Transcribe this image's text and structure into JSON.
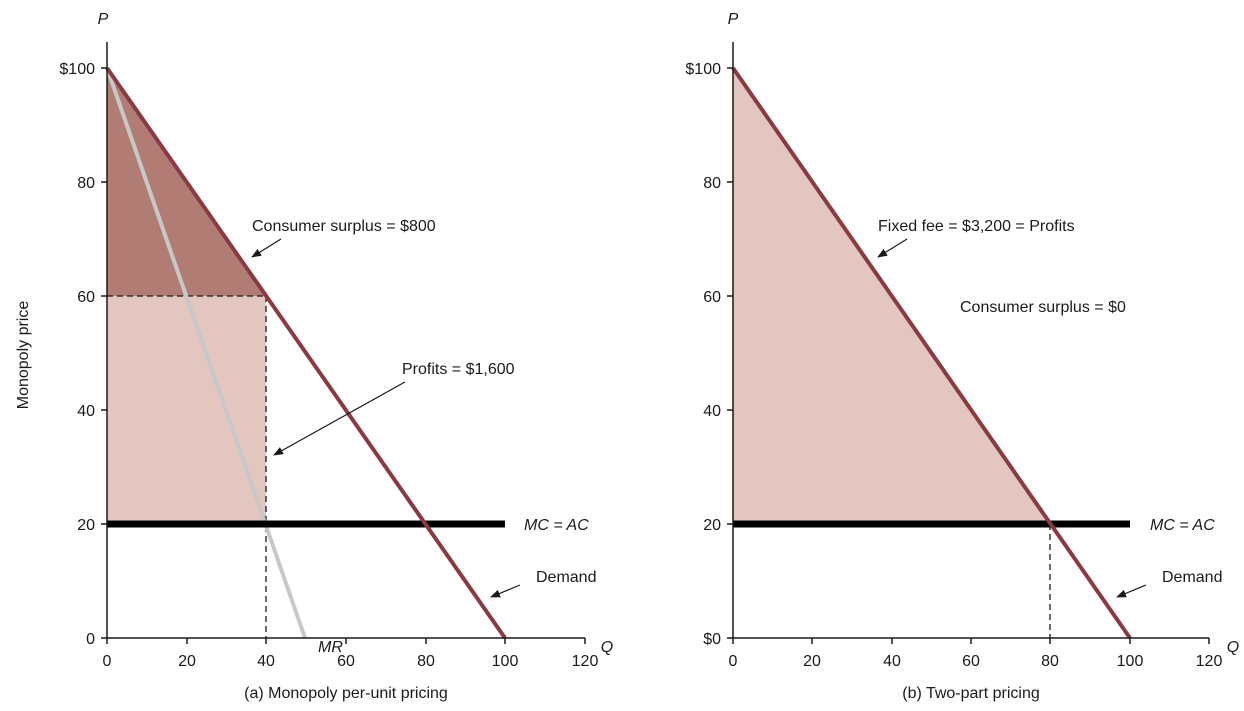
{
  "colors": {
    "demand": "#8b3a42",
    "mr": "#c8c8c8",
    "mc": "#000000",
    "consumer_surplus_fill": "#b07c74",
    "profit_fill": "#e2c6bf",
    "axis": "#1a1a1a"
  },
  "chart_data": [
    {
      "type": "line",
      "caption": "(a) Monopoly per-unit pricing",
      "xlabel": "Q",
      "ylabel": "P",
      "ylabel_side": "Monopoly price",
      "xlim": [
        0,
        120
      ],
      "ylim": [
        0,
        100
      ],
      "x_ticks": [
        "0",
        "20",
        "40",
        "60",
        "80",
        "100",
        "120"
      ],
      "y_ticks": [
        "0",
        "20",
        "40",
        "60",
        "80",
        "$100"
      ],
      "series": [
        {
          "name": "Demand",
          "x": [
            0,
            100
          ],
          "y": [
            100,
            0
          ]
        },
        {
          "name": "MR",
          "x": [
            0,
            50
          ],
          "y": [
            100,
            0
          ]
        },
        {
          "name": "MC = AC",
          "x": [
            0,
            100
          ],
          "y": [
            20,
            20
          ]
        }
      ],
      "areas": [
        {
          "label": "Consumer surplus = $800",
          "kind": "consumer_surplus",
          "x": [
            0,
            0,
            40
          ],
          "y": [
            100,
            60,
            60
          ]
        },
        {
          "label": "Profits = $1,600",
          "kind": "profit",
          "x": [
            0,
            40,
            40,
            0
          ],
          "y": [
            60,
            60,
            20,
            20
          ]
        }
      ],
      "guides": [
        {
          "x": [
            0,
            40
          ],
          "y": [
            60,
            60
          ]
        },
        {
          "x": [
            40,
            40
          ],
          "y": [
            60,
            0
          ]
        }
      ],
      "annotations": {
        "consumer_surplus": "Consumer surplus = $800",
        "profits": "Profits = $1,600",
        "mc_label": "MC = AC",
        "demand_label": "Demand",
        "mr_label": "MR"
      }
    },
    {
      "type": "line",
      "caption": "(b) Two-part pricing",
      "xlabel": "Q",
      "ylabel": "P",
      "xlim": [
        0,
        120
      ],
      "ylim": [
        0,
        100
      ],
      "x_ticks": [
        "0",
        "20",
        "40",
        "60",
        "80",
        "100",
        "120"
      ],
      "y_ticks": [
        "$0",
        "20",
        "40",
        "60",
        "80",
        "$100"
      ],
      "series": [
        {
          "name": "Demand",
          "x": [
            0,
            100
          ],
          "y": [
            100,
            0
          ]
        },
        {
          "name": "MC = AC",
          "x": [
            0,
            100
          ],
          "y": [
            20,
            20
          ]
        }
      ],
      "areas": [
        {
          "label": "Fixed fee = $3,200 = Profits",
          "kind": "profit",
          "x": [
            0,
            0,
            80
          ],
          "y": [
            100,
            20,
            20
          ]
        }
      ],
      "guides": [
        {
          "x": [
            80,
            80
          ],
          "y": [
            20,
            0
          ]
        }
      ],
      "annotations": {
        "fixed_fee": "Fixed fee = $3,200 = Profits",
        "consumer_surplus": "Consumer surplus = $0",
        "mc_label": "MC = AC",
        "demand_label": "Demand"
      }
    }
  ]
}
